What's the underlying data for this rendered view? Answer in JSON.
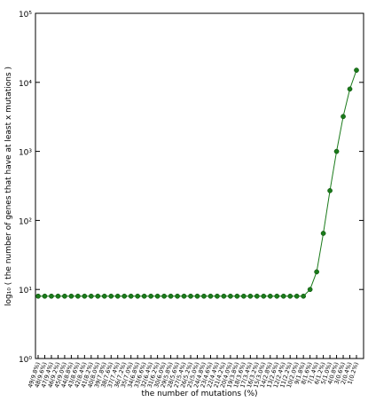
{
  "chart_data": {
    "type": "line",
    "xlabel": "the number of mutations (%)",
    "ylabel": "log₁₀ ( the number of genes that have at least x mutations )",
    "categories": [
      "49(9.8%)",
      "48(9.6%)",
      "47(9.4%)",
      "46(9.2%)",
      "45(9.0%)",
      "44(8.8%)",
      "43(8.6%)",
      "42(8.4%)",
      "41(8.2%)",
      "40(8.0%)",
      "39(7.8%)",
      "38(7.6%)",
      "37(7.4%)",
      "36(7.2%)",
      "35(7.0%)",
      "34(6.8%)",
      "33(6.6%)",
      "32(6.4%)",
      "31(6.2%)",
      "30(6.0%)",
      "29(5.8%)",
      "28(5.6%)",
      "27(5.4%)",
      "26(5.2%)",
      "25(5.0%)",
      "24(4.8%)",
      "23(4.6%)",
      "22(4.4%)",
      "21(4.2%)",
      "20(4.0%)",
      "19(3.8%)",
      "18(3.6%)",
      "17(3.4%)",
      "16(3.2%)",
      "15(3.0%)",
      "14(2.8%)",
      "13(2.6%)",
      "12(2.4%)",
      "11(2.2%)",
      "10(2.0%)",
      "9(1.8%)",
      "8(1.6%)",
      "7(1.4%)",
      "6(1.2%)",
      "5(1.0%)",
      "4(0.8%)",
      "3(0.6%)",
      "2(0.4%)",
      "1(0.2%)"
    ],
    "values": [
      8,
      8,
      8,
      8,
      8,
      8,
      8,
      8,
      8,
      8,
      8,
      8,
      8,
      8,
      8,
      8,
      8,
      8,
      8,
      8,
      8,
      8,
      8,
      8,
      8,
      8,
      8,
      8,
      8,
      8,
      8,
      8,
      8,
      8,
      8,
      8,
      8,
      8,
      8,
      8,
      8,
      10,
      18,
      65,
      270,
      1000,
      3200,
      8000,
      15000
    ],
    "color": "#1a7a1a",
    "log_y": true,
    "ylim": [
      1,
      100000
    ],
    "yticks": [
      {
        "value": 1,
        "label": "10⁰"
      },
      {
        "value": 10,
        "label": "10¹"
      },
      {
        "value": 100,
        "label": "10²"
      },
      {
        "value": 1000,
        "label": "10³"
      },
      {
        "value": 10000,
        "label": "10⁴"
      },
      {
        "value": 100000,
        "label": "10⁵"
      }
    ]
  }
}
